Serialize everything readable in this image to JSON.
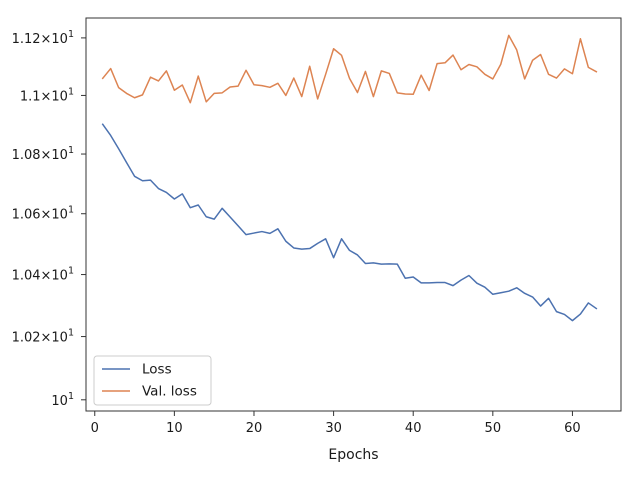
{
  "chart_data": {
    "type": "line",
    "title": "",
    "xlabel": "Epochs",
    "ylabel": "",
    "xlim": [
      -1.1,
      66.1
    ],
    "ylim": [
      9.965,
      11.27
    ],
    "y_scale": "log",
    "grid": false,
    "legend_placement": "bottom-left",
    "x_ticks": [
      0,
      10,
      20,
      30,
      40,
      50,
      60
    ],
    "x_tick_labels": [
      "0",
      "10",
      "20",
      "30",
      "40",
      "50",
      "60"
    ],
    "y_ticks": [
      10.0,
      10.2,
      10.4,
      10.6,
      10.8,
      11.0,
      11.2
    ],
    "y_tick_labels": [
      "10^1",
      "1.02×10^1",
      "1.04×10^1",
      "1.06×10^1",
      "1.08×10^1",
      "1.1×10^1",
      "1.12×10^1"
    ],
    "x": [
      1,
      2,
      3,
      4,
      5,
      6,
      7,
      8,
      9,
      10,
      11,
      12,
      13,
      14,
      15,
      16,
      17,
      18,
      19,
      20,
      21,
      22,
      23,
      24,
      25,
      26,
      27,
      28,
      29,
      30,
      31,
      32,
      33,
      34,
      35,
      36,
      37,
      38,
      39,
      40,
      41,
      42,
      43,
      44,
      45,
      46,
      47,
      48,
      49,
      50,
      51,
      52,
      53,
      54,
      55,
      56,
      57,
      58,
      59,
      60,
      61,
      62,
      63
    ],
    "series": [
      {
        "name": "Loss",
        "color": "#4c72b0",
        "values": [
          10.901,
          10.863,
          10.818,
          10.771,
          10.725,
          10.71,
          10.712,
          10.684,
          10.671,
          10.649,
          10.666,
          10.62,
          10.629,
          10.59,
          10.582,
          10.618,
          10.589,
          10.56,
          10.531,
          10.536,
          10.541,
          10.535,
          10.55,
          10.509,
          10.487,
          10.483,
          10.485,
          10.502,
          10.517,
          10.455,
          10.517,
          10.479,
          10.464,
          10.436,
          10.438,
          10.434,
          10.435,
          10.434,
          10.388,
          10.392,
          10.373,
          10.373,
          10.374,
          10.374,
          10.364,
          10.382,
          10.397,
          10.372,
          10.359,
          10.336,
          10.341,
          10.346,
          10.357,
          10.339,
          10.327,
          10.298,
          10.323,
          10.28,
          10.271,
          10.251,
          10.272,
          10.308,
          10.29
        ]
      },
      {
        "name": "Val. loss",
        "color": "#dd8452",
        "values": [
          11.059,
          11.093,
          11.027,
          11.007,
          10.992,
          11.002,
          11.063,
          11.05,
          11.085,
          11.018,
          11.036,
          10.975,
          11.067,
          10.978,
          11.007,
          11.009,
          11.029,
          11.032,
          11.087,
          11.037,
          11.034,
          11.028,
          11.042,
          11.0,
          11.06,
          10.996,
          11.101,
          10.988,
          11.073,
          11.162,
          11.139,
          11.059,
          11.01,
          11.083,
          10.996,
          11.085,
          11.076,
          11.009,
          11.005,
          11.004,
          11.07,
          11.017,
          11.11,
          11.113,
          11.14,
          11.089,
          11.107,
          11.099,
          11.073,
          11.057,
          11.108,
          11.209,
          11.158,
          11.057,
          11.122,
          11.142,
          11.073,
          11.06,
          11.092,
          11.075,
          11.197,
          11.097,
          11.082
        ]
      }
    ]
  }
}
